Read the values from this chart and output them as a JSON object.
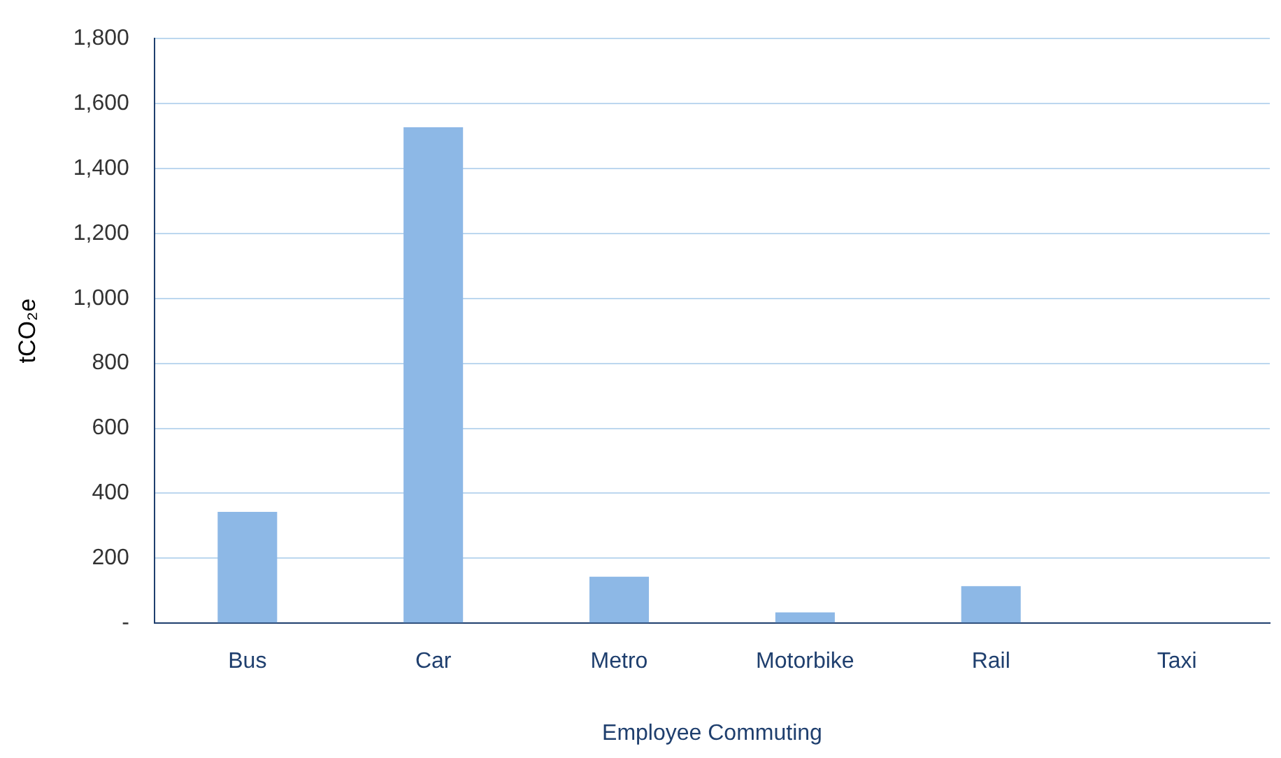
{
  "chart_data": {
    "type": "bar",
    "xlabel": "Employee Commuting",
    "ylabel": "tCO₂e",
    "categories": [
      "Bus",
      "Car",
      "Metro",
      "Motorbike",
      "Rail",
      "Taxi"
    ],
    "values": [
      343,
      1527,
      143,
      33,
      114,
      0
    ],
    "color": "#8db8e6",
    "ylim": [
      0,
      1800
    ],
    "yticks": [
      {
        "value": 0,
        "label": "-"
      },
      200,
      400,
      600,
      800,
      {
        "value": 1000,
        "label": "1,000"
      },
      {
        "value": 1200,
        "label": "1,200"
      },
      {
        "value": 1400,
        "label": "1,400"
      },
      {
        "value": 1600,
        "label": "1,600"
      },
      {
        "value": 1800,
        "label": "1,800"
      }
    ],
    "grid": "y",
    "legend": false
  }
}
